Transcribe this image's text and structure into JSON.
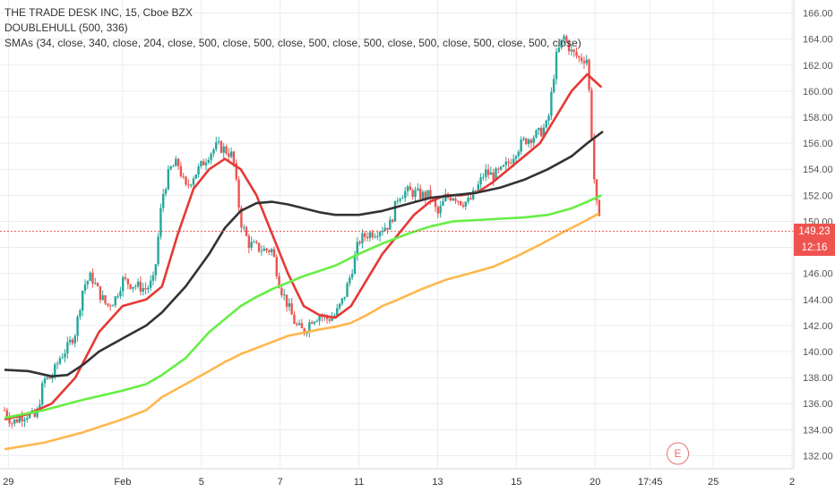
{
  "header": {
    "symbol_line": "THE TRADE DESK INC, 15, Cboe BZX",
    "indicator_1": "DOUBLEHULL (500, 336)",
    "indicator_2": "SMAs (34, close, 340, close, 204, close, 500, close, 500, close, 500, close, 500, close, 500, close, 500, close, 500, close)"
  },
  "price_badge": {
    "price": "149.23",
    "countdown": "12:16",
    "color": "#ef5350"
  },
  "event_marker": {
    "label": "E",
    "color": "#e57373"
  },
  "colors": {
    "up": "#26a69a",
    "down": "#ef5350",
    "hull": "#e53935",
    "sma_dark": "#333333",
    "sma_green": "#66ee44",
    "sma_orange": "#ffb74d",
    "grid": "#e9ecf0",
    "axis_text": "#555555"
  },
  "chart_data": {
    "type": "candlestick",
    "title": "THE TRADE DESK INC, 15, Cboe BZX",
    "y_axis": {
      "range": [
        131,
        167
      ],
      "ticks": [
        "132.00",
        "134.00",
        "136.00",
        "138.00",
        "140.00",
        "142.00",
        "144.00",
        "146.00",
        "148.00",
        "150.00",
        "152.00",
        "154.00",
        "156.00",
        "158.00",
        "160.00",
        "162.00",
        "164.00",
        "166.00"
      ]
    },
    "x_axis": {
      "range": [
        0,
        100
      ],
      "ticks": [
        {
          "label": "29",
          "x": 0.5
        },
        {
          "label": "Feb",
          "x": 15
        },
        {
          "label": "5",
          "x": 25
        },
        {
          "label": "7",
          "x": 35
        },
        {
          "label": "11",
          "x": 45
        },
        {
          "label": "13",
          "x": 55
        },
        {
          "label": "15",
          "x": 65
        },
        {
          "label": "20",
          "x": 75
        },
        {
          "label": "17:45",
          "x": 82
        },
        {
          "label": "25",
          "x": 90
        },
        {
          "label": "2",
          "x": 100
        }
      ]
    },
    "last_price": 149.23,
    "event_x": 85.5,
    "price_series": [
      [
        0,
        135.5
      ],
      [
        1,
        134.5
      ],
      [
        2,
        135
      ],
      [
        3,
        135.2
      ],
      [
        4,
        134.9
      ],
      [
        5,
        137.8
      ],
      [
        6,
        138
      ],
      [
        7,
        139.5
      ],
      [
        8,
        140.3
      ],
      [
        9,
        141.5
      ],
      [
        10,
        145
      ],
      [
        11,
        145.8
      ],
      [
        12,
        144.5
      ],
      [
        13,
        143.5
      ],
      [
        14,
        144
      ],
      [
        15,
        145.5
      ],
      [
        16,
        145.2
      ],
      [
        17,
        145
      ],
      [
        18,
        144.8
      ],
      [
        19,
        145.5
      ],
      [
        20,
        151.8
      ],
      [
        21,
        154
      ],
      [
        22,
        154.5
      ],
      [
        23,
        152.5
      ],
      [
        24,
        153.5
      ],
      [
        25,
        154.3
      ],
      [
        26,
        155.2
      ],
      [
        27,
        155.8
      ],
      [
        28,
        155.5
      ],
      [
        29,
        155
      ],
      [
        30,
        150
      ],
      [
        31,
        148.3
      ],
      [
        32,
        148
      ],
      [
        33,
        147.8
      ],
      [
        34,
        147.8
      ],
      [
        35,
        145
      ],
      [
        36,
        143.5
      ],
      [
        37,
        142
      ],
      [
        38,
        141.5
      ],
      [
        39,
        142.5
      ],
      [
        40,
        142.8
      ],
      [
        41,
        142.5
      ],
      [
        42,
        142.8
      ],
      [
        43,
        144
      ],
      [
        44,
        146
      ],
      [
        45,
        148.5
      ],
      [
        46,
        149
      ],
      [
        47,
        149.2
      ],
      [
        48,
        149.5
      ],
      [
        49,
        149.8
      ],
      [
        50,
        152
      ],
      [
        51,
        152.3
      ],
      [
        52,
        152.2
      ],
      [
        53,
        152
      ],
      [
        54,
        152
      ],
      [
        55,
        150.5
      ],
      [
        56,
        151.8
      ],
      [
        57,
        152
      ],
      [
        58,
        151.5
      ],
      [
        59,
        151.5
      ],
      [
        60,
        152.5
      ],
      [
        61,
        153.8
      ],
      [
        62,
        153.5
      ],
      [
        63,
        153.8
      ],
      [
        64,
        154.5
      ],
      [
        65,
        155.5
      ],
      [
        66,
        156.2
      ],
      [
        67,
        156.5
      ],
      [
        68,
        156.8
      ],
      [
        69,
        157.5
      ],
      [
        70,
        162.5
      ],
      [
        71,
        164.2
      ],
      [
        72,
        163
      ],
      [
        73,
        162.5
      ],
      [
        74,
        162.5
      ],
      [
        75,
        152
      ],
      [
        75.7,
        149.3
      ]
    ],
    "series": [
      {
        "name": "DOUBLEHULL (500, 336)",
        "color": "#e53935",
        "points": [
          [
            0,
            134.8
          ],
          [
            3,
            135.2
          ],
          [
            6,
            136
          ],
          [
            9,
            138
          ],
          [
            12,
            141.5
          ],
          [
            15,
            143.5
          ],
          [
            18,
            144
          ],
          [
            20,
            145
          ],
          [
            22,
            149
          ],
          [
            24,
            152.5
          ],
          [
            26,
            154
          ],
          [
            28,
            154.8
          ],
          [
            30,
            154
          ],
          [
            32,
            152
          ],
          [
            34,
            149
          ],
          [
            36,
            146
          ],
          [
            38,
            143.5
          ],
          [
            40,
            142.8
          ],
          [
            42,
            142.6
          ],
          [
            44,
            143.5
          ],
          [
            46,
            145.5
          ],
          [
            48,
            147.5
          ],
          [
            50,
            149
          ],
          [
            52,
            150.5
          ],
          [
            54,
            151.5
          ],
          [
            56,
            152
          ],
          [
            58,
            152
          ],
          [
            60,
            152.2
          ],
          [
            62,
            153
          ],
          [
            64,
            154
          ],
          [
            66,
            155
          ],
          [
            68,
            156
          ],
          [
            70,
            158
          ],
          [
            72,
            160
          ],
          [
            74,
            161.3
          ],
          [
            75.8,
            160.3
          ]
        ]
      },
      {
        "name": "SMA 34",
        "color": "#333333",
        "points": [
          [
            0,
            138.6
          ],
          [
            3,
            138.5
          ],
          [
            6,
            138.1
          ],
          [
            8,
            138.2
          ],
          [
            10,
            139
          ],
          [
            12,
            140
          ],
          [
            15,
            141
          ],
          [
            18,
            142
          ],
          [
            20,
            143
          ],
          [
            23,
            145
          ],
          [
            26,
            147.5
          ],
          [
            28,
            149.5
          ],
          [
            30,
            150.8
          ],
          [
            32,
            151.4
          ],
          [
            34,
            151.5
          ],
          [
            36,
            151.3
          ],
          [
            38,
            151
          ],
          [
            40,
            150.7
          ],
          [
            42,
            150.5
          ],
          [
            45,
            150.5
          ],
          [
            48,
            150.8
          ],
          [
            51,
            151.3
          ],
          [
            54,
            151.8
          ],
          [
            57,
            152
          ],
          [
            60,
            152.2
          ],
          [
            63,
            152.6
          ],
          [
            66,
            153.2
          ],
          [
            69,
            154
          ],
          [
            72,
            155
          ],
          [
            74,
            156
          ],
          [
            76,
            156.9
          ]
        ]
      },
      {
        "name": "SMA 340",
        "color": "#66ee44",
        "points": [
          [
            0,
            134.9
          ],
          [
            5,
            135.5
          ],
          [
            10,
            136.3
          ],
          [
            15,
            137
          ],
          [
            18,
            137.5
          ],
          [
            20,
            138.2
          ],
          [
            23,
            139.5
          ],
          [
            26,
            141.5
          ],
          [
            28,
            142.5
          ],
          [
            30,
            143.5
          ],
          [
            32,
            144.2
          ],
          [
            34,
            144.8
          ],
          [
            36,
            145.3
          ],
          [
            38,
            145.8
          ],
          [
            40,
            146.2
          ],
          [
            42,
            146.6
          ],
          [
            45,
            147.5
          ],
          [
            48,
            148.3
          ],
          [
            51,
            149
          ],
          [
            54,
            149.6
          ],
          [
            57,
            150
          ],
          [
            60,
            150.1
          ],
          [
            63,
            150.2
          ],
          [
            66,
            150.3
          ],
          [
            69,
            150.5
          ],
          [
            72,
            151
          ],
          [
            74,
            151.5
          ],
          [
            75.8,
            152
          ]
        ]
      },
      {
        "name": "SMA 204",
        "color": "#ffb74d",
        "points": [
          [
            0,
            132.5
          ],
          [
            5,
            133
          ],
          [
            10,
            133.8
          ],
          [
            15,
            134.8
          ],
          [
            18,
            135.5
          ],
          [
            20,
            136.5
          ],
          [
            23,
            137.5
          ],
          [
            26,
            138.5
          ],
          [
            28,
            139.2
          ],
          [
            30,
            139.8
          ],
          [
            33,
            140.5
          ],
          [
            36,
            141.2
          ],
          [
            40,
            141.7
          ],
          [
            42,
            141.9
          ],
          [
            44,
            142.2
          ],
          [
            46,
            142.8
          ],
          [
            48,
            143.5
          ],
          [
            50,
            144
          ],
          [
            53,
            144.8
          ],
          [
            56,
            145.5
          ],
          [
            59,
            146
          ],
          [
            62,
            146.5
          ],
          [
            65,
            147.3
          ],
          [
            68,
            148.2
          ],
          [
            71,
            149.2
          ],
          [
            73,
            149.8
          ],
          [
            75.5,
            150.6
          ]
        ]
      }
    ]
  }
}
